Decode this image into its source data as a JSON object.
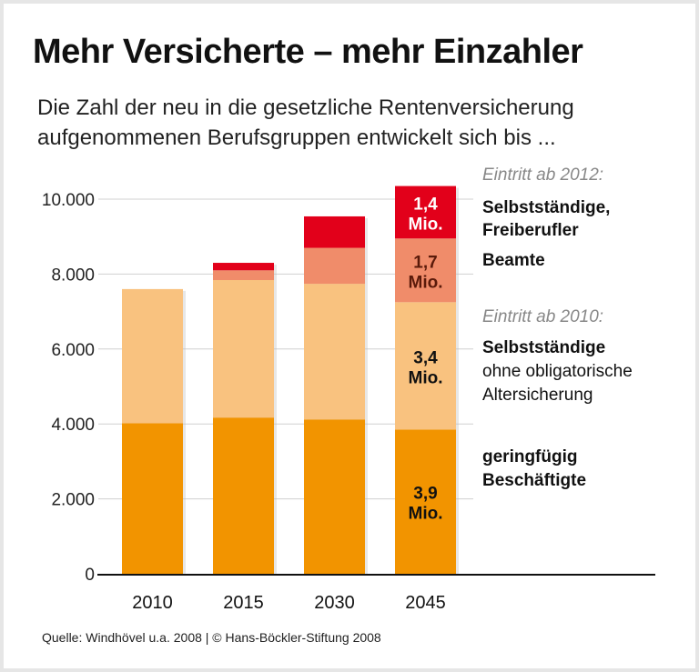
{
  "title": "Mehr Versicherte – mehr Einzahler",
  "subtitle_lines": [
    "Die Zahl der neu in die gesetzliche Rentenversicherung",
    "aufgenommenen Berufsgruppen entwickelt sich bis ..."
  ],
  "source": "Quelle: Windhövel u.a. 2008 | © Hans-Böckler-Stiftung 2008",
  "legend": {
    "heading_2012": "Eintritt ab 2012:",
    "selbststaendige_freiberufler": [
      "Selbstständige,",
      "Freiberufler"
    ],
    "beamte": "Beamte",
    "heading_2010": "Eintritt ab 2010:",
    "selbststaendige_ohne": [
      "Selbstständige",
      "ohne obligatorische",
      "Altersicherung"
    ],
    "geringfuegig": [
      "geringfügig",
      "Beschäftigte"
    ]
  },
  "chart_data": {
    "type": "bar",
    "stacked": true,
    "categories": [
      "2010",
      "2015",
      "2030",
      "2045"
    ],
    "ylim": [
      0,
      10000
    ],
    "yticks": [
      0,
      2000,
      4000,
      6000,
      8000,
      10000
    ],
    "ytick_labels": [
      "0",
      "2.000",
      "4.000",
      "6.000",
      "8.000",
      "10.000"
    ],
    "grid": true,
    "series": [
      {
        "name": "geringfügig Beschäftigte",
        "color": "#f29400",
        "values": [
          4020,
          4170,
          4120,
          3850
        ],
        "label_2045": [
          "3,9",
          "Mio."
        ],
        "label_color": "#111111"
      },
      {
        "name": "Selbstständige ohne obligatorische Altersicherung",
        "color": "#f9c27f",
        "values": [
          3580,
          3670,
          3620,
          3400
        ],
        "label_2045": [
          "3,4",
          "Mio."
        ],
        "label_color": "#111111"
      },
      {
        "name": "Beamte",
        "color": "#f08c6a",
        "values": [
          0,
          260,
          960,
          1700
        ],
        "label_2045": [
          "1,7",
          "Mio."
        ],
        "label_color": "#5a1a0a"
      },
      {
        "name": "Selbstständige, Freiberufler",
        "color": "#e2001a",
        "values": [
          0,
          200,
          840,
          1400
        ],
        "label_2045": [
          "1,4",
          "Mio."
        ],
        "label_color": "#ffffff"
      }
    ]
  }
}
